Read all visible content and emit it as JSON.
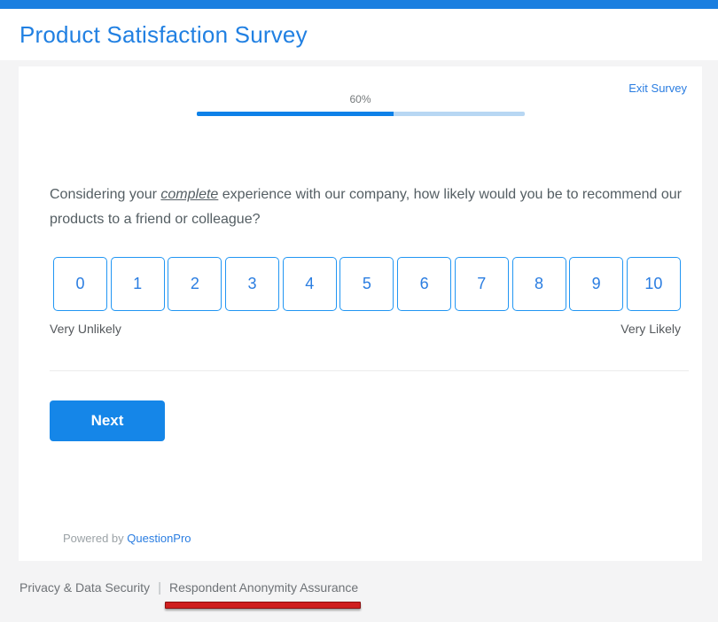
{
  "header": {
    "title": "Product Satisfaction Survey"
  },
  "survey": {
    "exit_label": "Exit Survey",
    "progress": {
      "percent": 60,
      "percent_label": "60%",
      "fill_style": "width:60%"
    },
    "question": {
      "prefix": "Considering your ",
      "emphasis": "complete",
      "suffix": " experience with our company, how likely would you be to recommend our products to a friend or colleague?"
    },
    "scale": {
      "options": [
        "0",
        "1",
        "2",
        "3",
        "4",
        "5",
        "6",
        "7",
        "8",
        "9",
        "10"
      ],
      "min_label": "Very Unlikely",
      "max_label": "Very Likely"
    },
    "next_label": "Next",
    "powered_by": {
      "prefix": "Powered by ",
      "brand": "QuestionPro"
    }
  },
  "footer": {
    "separator": "|",
    "links": [
      {
        "label": "Privacy & Data Security"
      },
      {
        "label": "Respondent Anonymity Assurance"
      }
    ]
  },
  "colors": {
    "accent_blue": "#1b7fe0",
    "title_blue": "#2180e2",
    "link_blue": "#2a7de1",
    "progress_fill": "#0d81e8",
    "progress_track": "#b8d7f3",
    "button_border": "#2196f3",
    "next_button": "#1586e8",
    "annotation_red": "#cf1f1f",
    "text_gray": "#545e63",
    "footer_gray": "#6e7276"
  }
}
